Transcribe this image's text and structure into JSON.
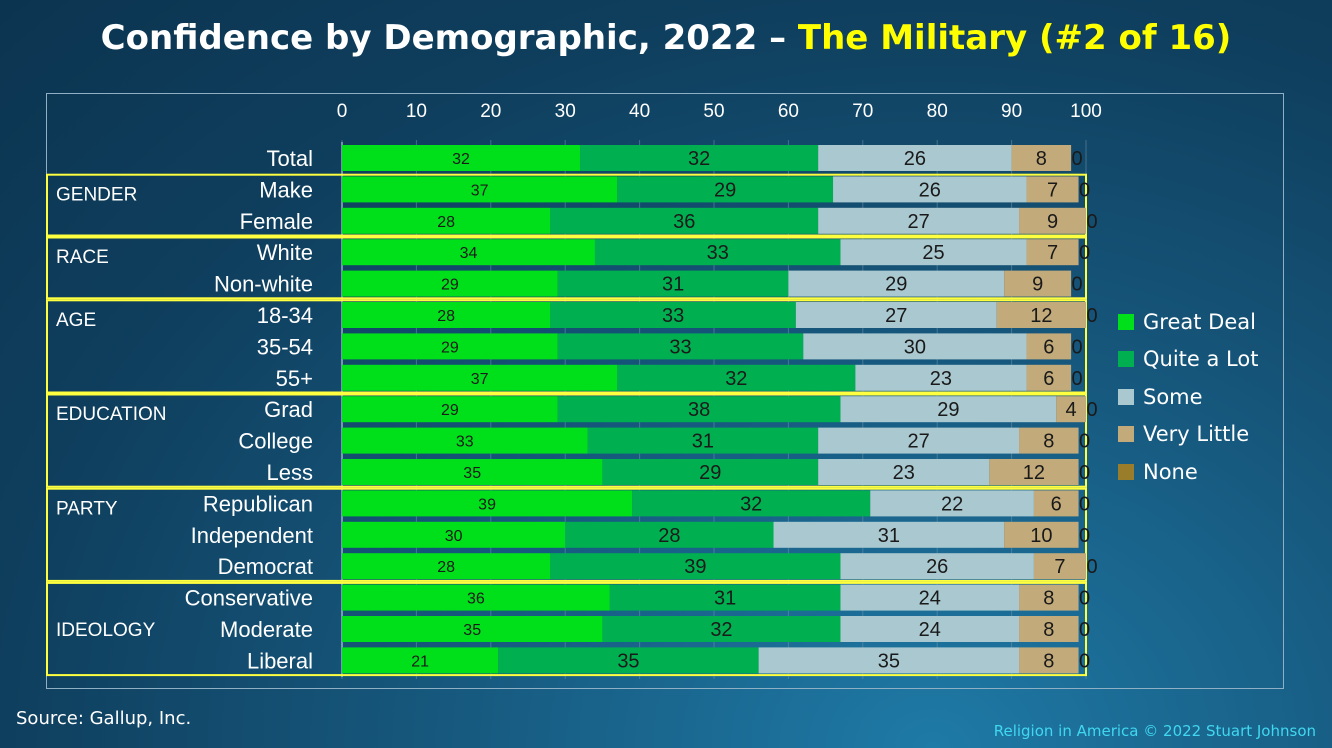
{
  "title": {
    "main": "Confidence by Demographic, 2022 – ",
    "highlight": "The Military (#2 of 16)"
  },
  "source": "Source: Gallup, Inc.",
  "credit": "Religion in America © 2022 Stuart Johnson",
  "colors": {
    "great_deal": "#00e01a",
    "quite_a_lot": "#00b050",
    "some": "#a9c8cf",
    "very_little": "#c2aa7a",
    "none": "#9a7d2a",
    "group_border": "#ffff40"
  },
  "chart_data": {
    "type": "bar",
    "orientation": "horizontal",
    "stacked": true,
    "xlim": [
      0,
      100
    ],
    "xticks": [
      "0",
      "10",
      "20",
      "30",
      "40",
      "50",
      "60",
      "70",
      "80",
      "90",
      "100"
    ],
    "gridlines": true,
    "legend_position": "right",
    "categories": [
      "Total",
      "Make",
      "Female",
      "White",
      "Non-white",
      "18-34",
      "35-54",
      "55+",
      "Grad",
      "College",
      "Less",
      "Republican",
      "Independent",
      "Democrat",
      "Conservative",
      "Moderate",
      "Liberal"
    ],
    "groups": [
      {
        "label": "GENDER",
        "rows": [
          "Make",
          "Female"
        ]
      },
      {
        "label": "RACE",
        "rows": [
          "White",
          "Non-white"
        ]
      },
      {
        "label": "AGE",
        "rows": [
          "18-34",
          "35-54",
          "55+"
        ]
      },
      {
        "label": "EDUCATION",
        "rows": [
          "Grad",
          "College",
          "Less"
        ]
      },
      {
        "label": "PARTY",
        "rows": [
          "Republican",
          "Independent",
          "Democrat"
        ]
      },
      {
        "label": "IDEOLOGY",
        "rows": [
          "Conservative",
          "Moderate",
          "Liberal"
        ]
      }
    ],
    "series": [
      {
        "name": "Great Deal",
        "values": [
          32,
          37,
          28,
          34,
          29,
          28,
          29,
          37,
          29,
          33,
          35,
          39,
          30,
          28,
          36,
          35,
          21
        ]
      },
      {
        "name": "Quite a Lot",
        "values": [
          32,
          29,
          36,
          33,
          31,
          33,
          33,
          32,
          38,
          31,
          29,
          32,
          28,
          39,
          31,
          32,
          35
        ]
      },
      {
        "name": "Some",
        "values": [
          26,
          26,
          27,
          25,
          29,
          27,
          30,
          23,
          29,
          27,
          23,
          22,
          31,
          26,
          24,
          24,
          35
        ]
      },
      {
        "name": "Very Little",
        "values": [
          8,
          7,
          9,
          7,
          9,
          12,
          6,
          6,
          4,
          8,
          12,
          6,
          10,
          7,
          8,
          8,
          8
        ]
      },
      {
        "name": "None",
        "values": [
          0,
          0,
          0,
          0,
          0,
          0,
          0,
          0,
          0,
          0,
          0,
          0,
          0,
          0,
          0,
          0,
          0
        ]
      }
    ]
  }
}
